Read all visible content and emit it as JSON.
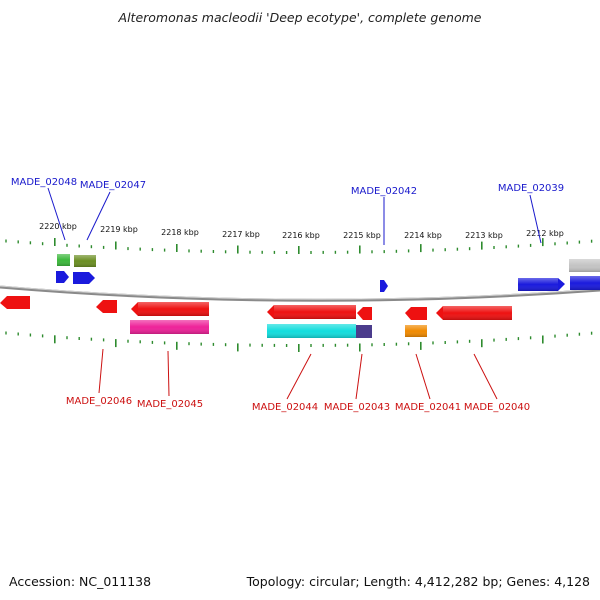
{
  "title": "Alteromonas macleodii 'Deep ecotype', complete genome",
  "accession_label": "Accession: NC_011138",
  "topology_label": "Topology: circular; Length: 4,412,282 bp; Genes: 4,128",
  "colors": {
    "forward_label": "#1a1acc",
    "reverse_label": "#cc1111",
    "tick": "#2e8b2e",
    "backbone": "#8a8a8a"
  },
  "kbp_ticks": [
    {
      "label": "2220 kbp"
    },
    {
      "label": "2219 kbp"
    },
    {
      "label": "2218 kbp"
    },
    {
      "label": "2217 kbp"
    },
    {
      "label": "2216 kbp"
    },
    {
      "label": "2215 kbp"
    },
    {
      "label": "2214 kbp"
    },
    {
      "label": "2213 kbp"
    },
    {
      "label": "2212 kbp"
    }
  ],
  "gene_labels": {
    "forward": [
      "MADE_02048",
      "MADE_02047",
      "MADE_02042",
      "MADE_02039"
    ],
    "reverse": [
      "MADE_02046",
      "MADE_02045",
      "MADE_02044",
      "MADE_02043",
      "MADE_02041",
      "MADE_02040"
    ]
  },
  "features": [
    {
      "name": "forward-gene-green",
      "color": "#3cb83c"
    },
    {
      "name": "forward-gene-olive",
      "color": "#6b8e23"
    },
    {
      "name": "forward-gene-blue",
      "color": "#1a1add"
    },
    {
      "name": "forward-gene-gray",
      "color": "#c0c0c0"
    },
    {
      "name": "reverse-gene-red",
      "color": "#ee1111"
    },
    {
      "name": "reverse-gene-magenta",
      "color": "#ee2299"
    },
    {
      "name": "reverse-gene-cyan",
      "color": "#11dddd"
    },
    {
      "name": "reverse-gene-purple",
      "color": "#4b3c8c"
    },
    {
      "name": "reverse-gene-orange",
      "color": "#f08a00"
    }
  ]
}
